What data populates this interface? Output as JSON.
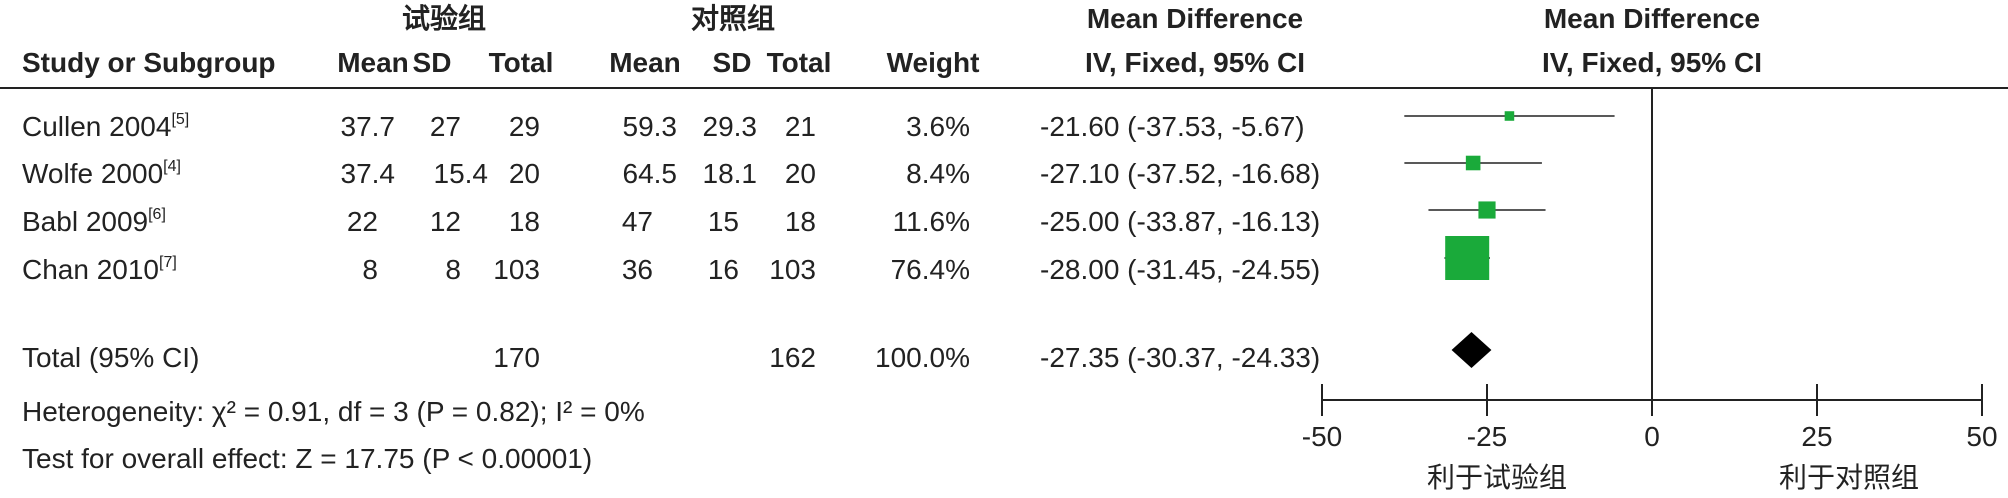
{
  "headers": {
    "exp_group": "试验组",
    "ctrl_group": "对照组",
    "md_col": "Mean Difference",
    "md_plot": "Mean Difference",
    "study": "Study or Subgroup",
    "mean": "Mean",
    "sd": "SD",
    "total": "Total",
    "weight": "Weight",
    "method_col": "IV, Fixed, 95% CI",
    "method_plot": "IV, Fixed, 95% CI"
  },
  "studies": [
    {
      "name": "Cullen 2004",
      "ref": "[5]",
      "exp_mean": "37.7",
      "exp_sd": "27",
      "exp_total": "29",
      "ctrl_mean": "59.3",
      "ctrl_sd": "29.3",
      "ctrl_total": "21",
      "weight": "3.6%",
      "ci_text": "-21.60 (-37.53, -5.67)"
    },
    {
      "name": "Wolfe 2000",
      "ref": "[4]",
      "exp_mean": "37.4",
      "exp_sd": "15.4",
      "exp_total": "20",
      "ctrl_mean": "64.5",
      "ctrl_sd": "18.1",
      "ctrl_total": "20",
      "weight": "8.4%",
      "ci_text": "-27.10 (-37.52, -16.68)"
    },
    {
      "name": "Babl 2009",
      "ref": "[6]",
      "exp_mean": "22",
      "exp_sd": "12",
      "exp_total": "18",
      "ctrl_mean": "47",
      "ctrl_sd": "15",
      "ctrl_total": "18",
      "weight": "11.6%",
      "ci_text": "-25.00 (-33.87, -16.13)"
    },
    {
      "name": "Chan 2010",
      "ref": "[7]",
      "exp_mean": "8",
      "exp_sd": "8",
      "exp_total": "103",
      "ctrl_mean": "36",
      "ctrl_sd": "16",
      "ctrl_total": "103",
      "weight": "76.4%",
      "ci_text": "-28.00 (-31.45, -24.55)"
    }
  ],
  "total": {
    "label": "Total (95% CI)",
    "exp_total": "170",
    "ctrl_total": "162",
    "weight": "100.0%",
    "ci_text": "-27.35 (-30.37, -24.33)"
  },
  "footer": {
    "heterogeneity": "Heterogeneity: χ² = 0.91, df = 3 (P = 0.82); I² = 0%",
    "overall": "Test for overall effect: Z = 17.75 (P < 0.00001)"
  },
  "axis": {
    "favours_left": "利于试验组",
    "favours_right": "利于对照组"
  },
  "chart_data": {
    "type": "forest",
    "xlim": [
      -50,
      50
    ],
    "ticks": [
      -50,
      -25,
      0,
      25,
      50
    ],
    "tick_labels": [
      "-50",
      "-25",
      "0",
      "25",
      "50"
    ],
    "marker_color": "#1aaa3a",
    "summary_color": "#000000",
    "series": [
      {
        "study": "Cullen 2004",
        "md": -21.6,
        "lo": -37.53,
        "hi": -5.67,
        "weight": 3.6
      },
      {
        "study": "Wolfe 2000",
        "md": -27.1,
        "lo": -37.52,
        "hi": -16.68,
        "weight": 8.4
      },
      {
        "study": "Babl 2009",
        "md": -25.0,
        "lo": -33.87,
        "hi": -16.13,
        "weight": 11.6
      },
      {
        "study": "Chan 2010",
        "md": -28.0,
        "lo": -31.45,
        "hi": -24.55,
        "weight": 76.4
      }
    ],
    "summary": {
      "md": -27.35,
      "lo": -30.37,
      "hi": -24.33
    }
  }
}
